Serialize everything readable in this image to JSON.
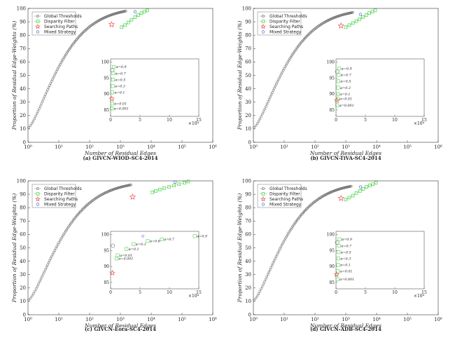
{
  "chart_data": [
    {
      "type": "scatter",
      "caption": "(a) GIVCN-WIOD-SC4-2014",
      "xlabel": "Number of Residual Edges",
      "ylabel": "Proportion of Residual Edge-Weights (%)",
      "xscale": "log",
      "xlim": [
        1,
        1000000
      ],
      "ylim": [
        0,
        100
      ],
      "x_ticks": [
        "10⁰",
        "10¹",
        "10²",
        "10³",
        "10⁴",
        "10⁵",
        "10⁶"
      ],
      "y_ticks": [
        "0",
        "10",
        "20",
        "30",
        "40",
        "50",
        "60",
        "70",
        "80",
        "90",
        "100"
      ],
      "legend": [
        "Global Thresholds",
        "Disparity Filter",
        "Searching Paths",
        "Mixed Strategy"
      ],
      "curve_end": [
        1500,
        98
      ],
      "disparity": {
        "x": [
          1100,
          1400,
          1800,
          2300,
          3000,
          3800,
          4800,
          6000,
          7500
        ],
        "y": [
          86.0,
          87.5,
          89.5,
          91.5,
          93.5,
          95.0,
          96.5,
          97.5,
          98.5
        ]
      },
      "searching_path": {
        "x": 520,
        "y": 88
      },
      "mixed": {
        "x": 3000,
        "y": 97.5
      },
      "inset": {
        "xlim": [
          0,
          15
        ],
        "ylim": [
          83,
          101
        ],
        "x_exp": "×10⁴",
        "x_ticks": [
          "0",
          "5",
          "10",
          "15"
        ],
        "y_ticks": [
          "85",
          "90",
          "95",
          "100"
        ],
        "circle": {
          "x": 0.3,
          "y": 97.5
        },
        "star": {
          "x": 0.2,
          "y": 88.5
        },
        "squares": [
          {
            "x": 0.55,
            "y": 98.5,
            "label": "α=0.9"
          },
          {
            "x": 0.45,
            "y": 96.5,
            "label": "α=0.7"
          },
          {
            "x": 0.4,
            "y": 94.5,
            "label": "α=0.5"
          },
          {
            "x": 0.35,
            "y": 92.5,
            "label": "α=0.3"
          },
          {
            "x": 0.3,
            "y": 90.5,
            "label": "α=0.1"
          },
          {
            "x": 0.25,
            "y": 87.0,
            "label": "α=0.01"
          },
          {
            "x": 0.2,
            "y": 85.5,
            "label": "α=0.001"
          }
        ]
      }
    },
    {
      "type": "scatter",
      "caption": "(b) GIVCN-TiVA-SC4-2014",
      "xlabel": "Number of Residual Edges",
      "ylabel": "Proportion of Residual Edge-Weights (%)",
      "xscale": "log",
      "xlim": [
        1,
        1000000
      ],
      "ylim": [
        0,
        100
      ],
      "x_ticks": [
        "10⁰",
        "10¹",
        "10²",
        "10³",
        "10⁴",
        "10⁵",
        "10⁶"
      ],
      "y_ticks": [
        "0",
        "10",
        "20",
        "30",
        "40",
        "50",
        "60",
        "70",
        "80",
        "90",
        "100"
      ],
      "legend": [
        "Global Thresholds",
        "Disparity Filter",
        "Searching Paths",
        "Mixed Strategy"
      ],
      "curve_end": [
        1700,
        97
      ],
      "disparity": {
        "x": [
          1000,
          1300,
          1700,
          2200,
          2800,
          3600,
          4600,
          5800,
          7300,
          9000
        ],
        "y": [
          86.0,
          87.5,
          89.0,
          90.5,
          92.0,
          93.5,
          95.0,
          96.5,
          97.5,
          98.5
        ]
      },
      "searching_path": {
        "x": 700,
        "y": 87
      },
      "mixed": {
        "x": 3000,
        "y": 95.5
      },
      "inset": {
        "xlim": [
          0,
          15
        ],
        "ylim": [
          83,
          101
        ],
        "x_exp": "×10⁴",
        "x_ticks": [
          "0",
          "5",
          "10",
          "15"
        ],
        "y_ticks": [
          "85",
          "90",
          "95",
          "100"
        ],
        "circle": {
          "x": 0.2,
          "y": 97.0
        },
        "star": {
          "x": 0.15,
          "y": 88.0
        },
        "squares": [
          {
            "x": 0.55,
            "y": 98.0,
            "label": "α=0.9"
          },
          {
            "x": 0.45,
            "y": 96.0,
            "label": "α=0.7"
          },
          {
            "x": 0.4,
            "y": 94.0,
            "label": "α=0.5"
          },
          {
            "x": 0.35,
            "y": 92.0,
            "label": "α=0.3"
          },
          {
            "x": 0.3,
            "y": 90.0,
            "label": "α=0.1"
          },
          {
            "x": 0.25,
            "y": 88.5,
            "label": "α=0.01"
          },
          {
            "x": 0.2,
            "y": 86.5,
            "label": "α=0.001"
          }
        ]
      }
    },
    {
      "type": "scatter",
      "caption": "(c) GIVCN-Eora-SC4-2014",
      "xlabel": "Number of Residual Edges",
      "ylabel": "Proportion of Residual Edge-Weights (%)",
      "xscale": "log",
      "xlim": [
        1,
        1000000
      ],
      "ylim": [
        0,
        100
      ],
      "x_ticks": [
        "10⁰",
        "10¹",
        "10²",
        "10³",
        "10⁴",
        "10⁵",
        "10⁶"
      ],
      "y_ticks": [
        "0",
        "10",
        "20",
        "30",
        "40",
        "50",
        "60",
        "70",
        "80",
        "90",
        "100"
      ],
      "legend": [
        "Global Thresholds",
        "Disparity Filter",
        "Searching Paths",
        "Mixed Strategy"
      ],
      "curve_end": [
        2200,
        97
      ],
      "disparity": {
        "x": [
          11000,
          14000,
          19000,
          26000,
          38000,
          55000,
          80000,
          120000,
          160000
        ],
        "y": [
          91.5,
          92.5,
          93.5,
          94.5,
          95.5,
          96.5,
          97.5,
          98.5,
          99.5
        ]
      },
      "searching_path": {
        "x": 2500,
        "y": 88
      },
      "mixed": {
        "x": 60000,
        "y": 99.0
      },
      "inset": {
        "xlim": [
          0,
          15
        ],
        "ylim": [
          83,
          101
        ],
        "x_exp": "×10⁴",
        "x_ticks": [
          "0",
          "5",
          "10",
          "15"
        ],
        "y_ticks": [
          "85",
          "90",
          "95",
          "100"
        ],
        "circle": {
          "x": 0.4,
          "y": 96.5
        },
        "star": {
          "x": 0.3,
          "y": 88.0
        },
        "squares": [
          {
            "x": 14.3,
            "y": 99.5,
            "label": "α=0.9"
          },
          {
            "x": 8.7,
            "y": 98.5,
            "label": "α=0.7"
          },
          {
            "x": 6.3,
            "y": 98.0,
            "label": "α=0.6"
          },
          {
            "x": 3.9,
            "y": 97.0,
            "label": "α=0.3"
          },
          {
            "x": 2.7,
            "y": 95.5,
            "label": "α=0.1"
          },
          {
            "x": 1.2,
            "y": 93.5,
            "label": "α=0.01"
          },
          {
            "x": 1.0,
            "y": 92.5,
            "label": "α=0.001"
          }
        ],
        "extra_circle": {
          "x": 5.5,
          "y": 99.5
        }
      }
    },
    {
      "type": "scatter",
      "caption": "(d) GIVCN-ADB-SC4-2014",
      "xlabel": "Number of Residual Edges",
      "ylabel": "Proportion of Residual Edge-Weights (%)",
      "xscale": "log",
      "xlim": [
        1,
        1000000
      ],
      "ylim": [
        0,
        100
      ],
      "x_ticks": [
        "10⁰",
        "10¹",
        "10²",
        "10³",
        "10⁴",
        "10⁵",
        "10⁶"
      ],
      "y_ticks": [
        "0",
        "10",
        "20",
        "30",
        "40",
        "50",
        "60",
        "70",
        "80",
        "90",
        "100"
      ],
      "legend": [
        "Global Thresholds",
        "Disparity Filter",
        "Searching Paths",
        "Mixed Strategy"
      ],
      "curve_end": [
        1500,
        96
      ],
      "disparity": {
        "x": [
          1000,
          1300,
          1700,
          2200,
          2900,
          3700,
          4700,
          6000,
          7600,
          9500
        ],
        "y": [
          86.0,
          87.5,
          89.0,
          91.0,
          92.5,
          94.0,
          95.5,
          96.5,
          97.5,
          98.5
        ]
      },
      "searching_path": {
        "x": 700,
        "y": 87
      },
      "mixed": {
        "x": 3000,
        "y": 95.5
      },
      "inset": {
        "xlim": [
          0,
          15
        ],
        "ylim": [
          83,
          101
        ],
        "x_exp": "×10⁴",
        "x_ticks": [
          "0",
          "5",
          "10",
          "15"
        ],
        "y_ticks": [
          "85",
          "90",
          "95",
          "100"
        ],
        "circle": {
          "x": 0.2,
          "y": 97.5
        },
        "star": {
          "x": 0.1,
          "y": 87.5
        },
        "squares": [
          {
            "x": 0.6,
            "y": 98.5,
            "label": "α=0.9"
          },
          {
            "x": 0.5,
            "y": 96.5,
            "label": "α=0.7"
          },
          {
            "x": 0.45,
            "y": 94.5,
            "label": "α=0.5"
          },
          {
            "x": 0.4,
            "y": 92.5,
            "label": "α=0.3"
          },
          {
            "x": 0.35,
            "y": 90.5,
            "label": "α=0.1"
          },
          {
            "x": 0.3,
            "y": 88.5,
            "label": "α=0.01"
          },
          {
            "x": 0.25,
            "y": 86.0,
            "label": "α=0.001"
          }
        ]
      }
    }
  ],
  "colors": {
    "global": "#444444",
    "disparity": "#33cc33",
    "searching": "#ee3333",
    "mixed": "#3355cc",
    "axis": "#333333",
    "grid_box": "#444444"
  }
}
